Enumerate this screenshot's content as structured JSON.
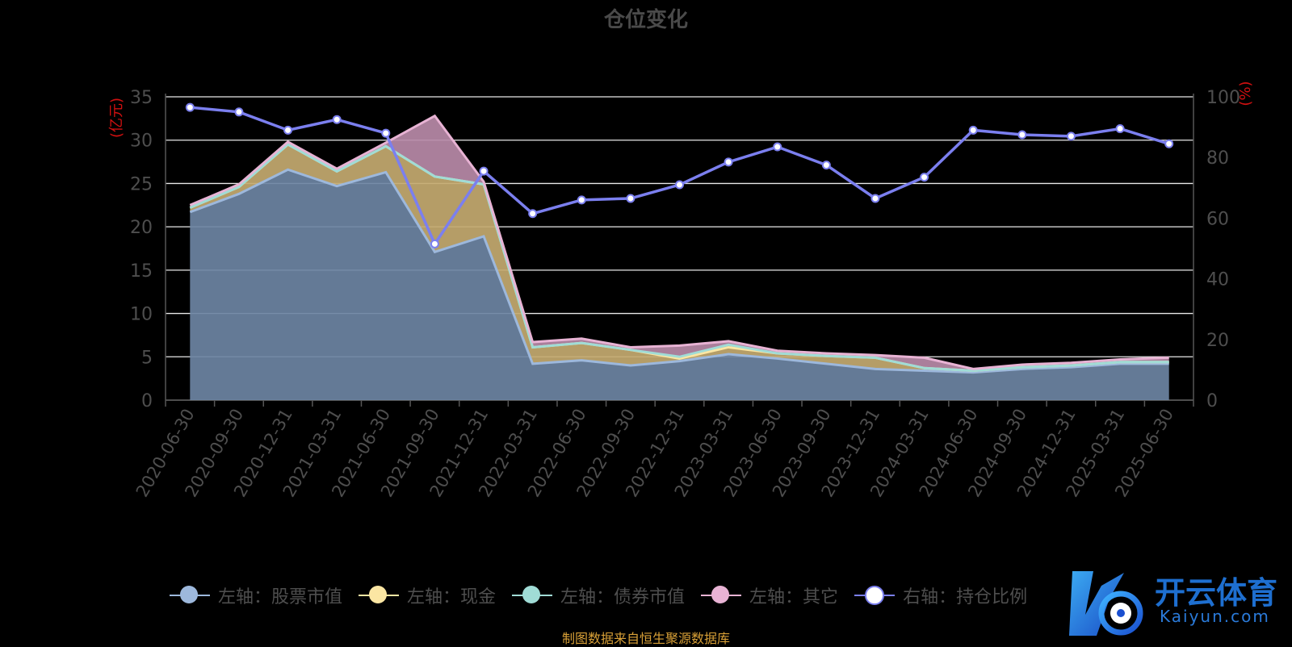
{
  "title": "仓位变化",
  "source_note": "制图数据来自恒生聚源数据库",
  "watermark": {
    "text": "开云体育",
    "sub": "Kaiyun.com"
  },
  "colors": {
    "background": "#000000",
    "stock": "#9db8dc",
    "cash": "#fbe6a3",
    "bond": "#a0dcd6",
    "other": "#e8b3d4",
    "ratio": "#7b7fef",
    "axis_unit": "#d01010"
  },
  "chart_data": {
    "type": "area",
    "title": "仓位变化",
    "x": [
      "2020-06-30",
      "2020-09-30",
      "2020-12-31",
      "2021-03-31",
      "2021-06-30",
      "2021-09-30",
      "2021-12-31",
      "2022-03-31",
      "2022-06-30",
      "2022-09-30",
      "2022-12-31",
      "2023-03-31",
      "2023-06-30",
      "2023-09-30",
      "2023-12-31",
      "2024-03-31",
      "2024-06-30",
      "2024-09-30",
      "2024-12-31",
      "2025-03-31",
      "2025-06-30"
    ],
    "left_axis": {
      "unit": "(亿元)",
      "range": [
        0,
        35
      ],
      "ticks": [
        0,
        5,
        10,
        15,
        20,
        25,
        30,
        35
      ]
    },
    "right_axis": {
      "unit": "(%)",
      "range": [
        0,
        100
      ],
      "ticks": [
        0,
        20,
        40,
        60,
        80,
        100
      ]
    },
    "grid": true,
    "legend_position": "bottom",
    "series": [
      {
        "name": "左轴：股票市值",
        "axis": "left",
        "key": "stock",
        "values": [
          21.7,
          23.8,
          26.6,
          24.7,
          26.3,
          17.1,
          18.9,
          4.2,
          4.6,
          4.0,
          4.5,
          5.3,
          4.8,
          4.2,
          3.6,
          3.4,
          3.2,
          3.6,
          3.8,
          4.2,
          4.2
        ]
      },
      {
        "name": "左轴：现金",
        "axis": "left",
        "key": "cash",
        "values": [
          0.5,
          0.8,
          2.9,
          1.7,
          3.0,
          8.7,
          6.0,
          1.9,
          2.0,
          1.8,
          0.3,
          0.8,
          0.6,
          0.9,
          1.3,
          0.3,
          0.2,
          0.2,
          0.2,
          0.2,
          0.2
        ]
      },
      {
        "name": "左轴：债券市值",
        "axis": "left",
        "key": "bond",
        "values": [
          0,
          0,
          0,
          0,
          0,
          0,
          0,
          0,
          0,
          0,
          0.2,
          0.3,
          0,
          0,
          0,
          0,
          0,
          0,
          0,
          0,
          0
        ]
      },
      {
        "name": "左轴：其它",
        "axis": "left",
        "key": "other",
        "values": [
          0.3,
          0.3,
          0.3,
          0.3,
          0.4,
          7.0,
          0.3,
          0.6,
          0.5,
          0.3,
          1.3,
          0.4,
          0.3,
          0.3,
          0.3,
          1.2,
          0.2,
          0.3,
          0.3,
          0.3,
          0.5
        ]
      },
      {
        "name": "右轴：持仓比例",
        "axis": "right",
        "key": "ratio",
        "values": [
          96.5,
          95.0,
          89.0,
          92.5,
          88.0,
          51.5,
          75.5,
          61.5,
          66.0,
          66.5,
          71.0,
          78.5,
          83.5,
          77.5,
          66.5,
          73.5,
          89.0,
          87.5,
          87.0,
          89.5,
          84.5
        ]
      }
    ]
  }
}
